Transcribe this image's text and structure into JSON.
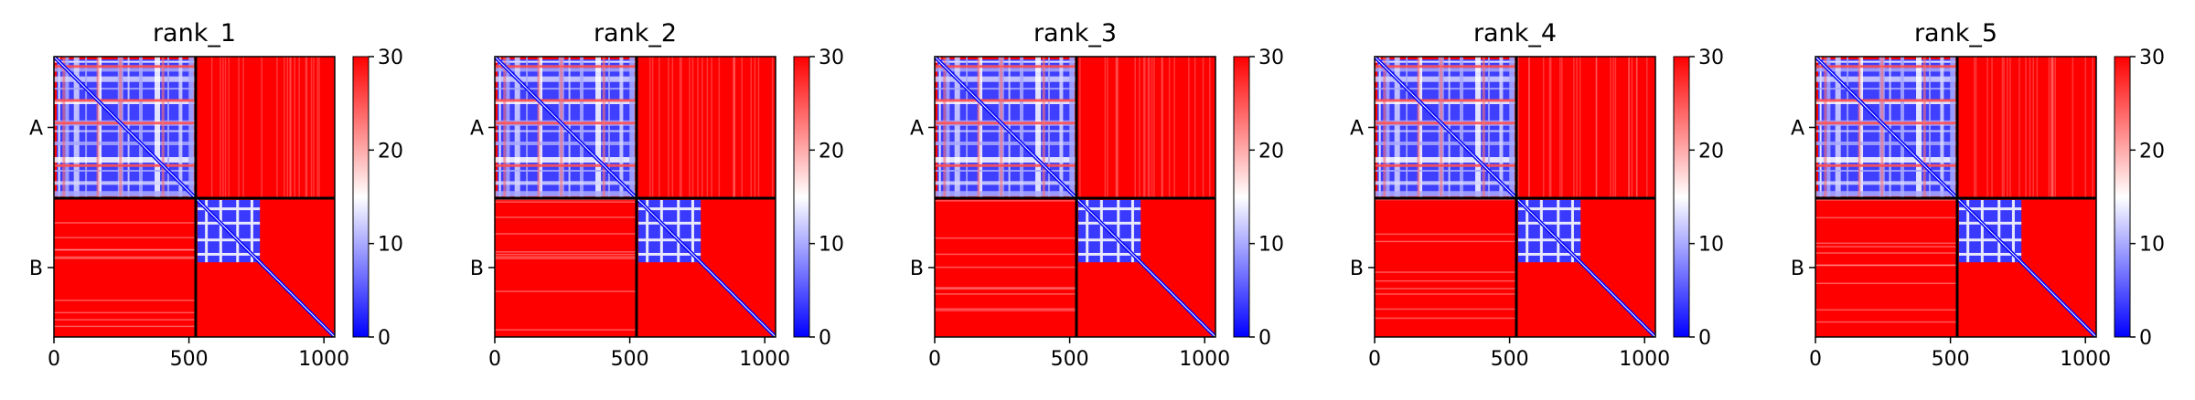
{
  "chart_data": [
    {
      "type": "heatmap",
      "title": "rank_1",
      "xticks": [
        0,
        500,
        1000
      ],
      "yticks": [
        "A",
        "B"
      ],
      "chains": [
        {
          "label": "A",
          "length": 525
        },
        {
          "label": "B",
          "length": 515
        }
      ],
      "total_residues": 1040,
      "colorbar": {
        "min": 0,
        "max": 30,
        "ticks": [
          0,
          10,
          20,
          30
        ],
        "colormap": "bwr"
      }
    },
    {
      "type": "heatmap",
      "title": "rank_2",
      "xticks": [
        0,
        500,
        1000
      ],
      "yticks": [
        "A",
        "B"
      ],
      "chains": [
        {
          "label": "A",
          "length": 525
        },
        {
          "label": "B",
          "length": 515
        }
      ],
      "total_residues": 1040,
      "colorbar": {
        "min": 0,
        "max": 30,
        "ticks": [
          0,
          10,
          20,
          30
        ],
        "colormap": "bwr"
      }
    },
    {
      "type": "heatmap",
      "title": "rank_3",
      "xticks": [
        0,
        500,
        1000
      ],
      "yticks": [
        "A",
        "B"
      ],
      "chains": [
        {
          "label": "A",
          "length": 525
        },
        {
          "label": "B",
          "length": 515
        }
      ],
      "total_residues": 1040,
      "colorbar": {
        "min": 0,
        "max": 30,
        "ticks": [
          0,
          10,
          20,
          30
        ],
        "colormap": "bwr"
      }
    },
    {
      "type": "heatmap",
      "title": "rank_4",
      "xticks": [
        0,
        500,
        1000
      ],
      "yticks": [
        "A",
        "B"
      ],
      "chains": [
        {
          "label": "A",
          "length": 525
        },
        {
          "label": "B",
          "length": 515
        }
      ],
      "total_residues": 1040,
      "colorbar": {
        "min": 0,
        "max": 30,
        "ticks": [
          0,
          10,
          20,
          30
        ],
        "colormap": "bwr"
      }
    },
    {
      "type": "heatmap",
      "title": "rank_5",
      "xticks": [
        0,
        500,
        1000
      ],
      "yticks": [
        "A",
        "B"
      ],
      "chains": [
        {
          "label": "A",
          "length": 525
        },
        {
          "label": "B",
          "length": 515
        }
      ],
      "total_residues": 1040,
      "colorbar": {
        "min": 0,
        "max": 30,
        "ticks": [
          0,
          10,
          20,
          30
        ],
        "colormap": "bwr"
      }
    }
  ],
  "colors": {
    "low": "#0000ff",
    "mid": "#ffffff",
    "high": "#ff0000",
    "divider": "#000000"
  }
}
